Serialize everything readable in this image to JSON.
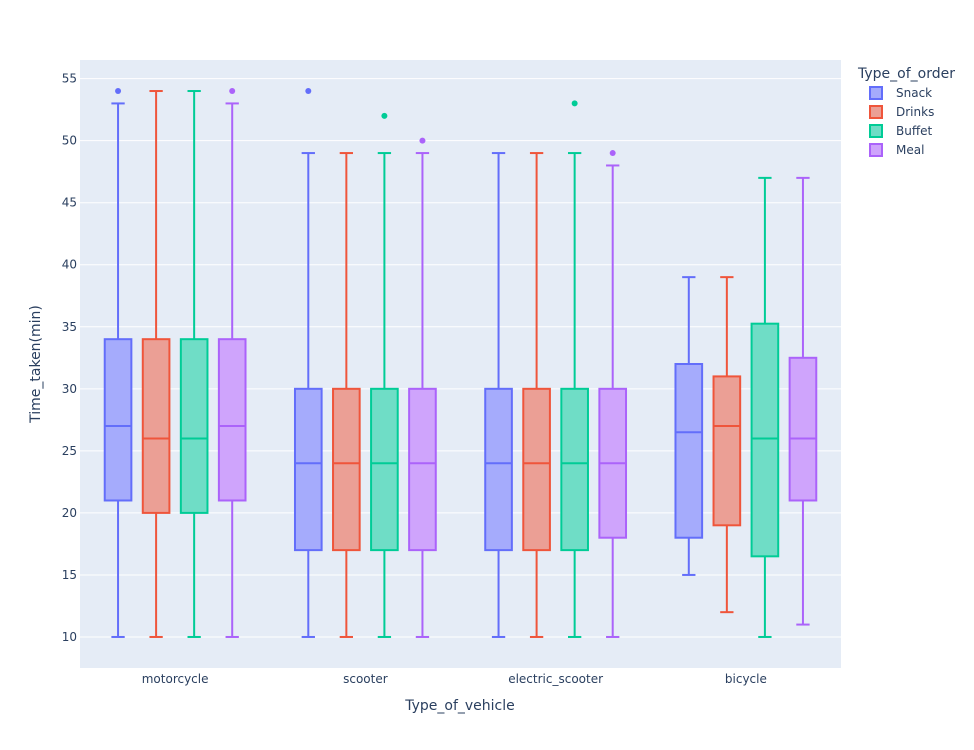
{
  "chart_data": {
    "type": "box",
    "title": "",
    "xlabel": "Type_of_vehicle",
    "ylabel": "Time_taken(min)",
    "ylim": [
      7.5,
      56.5
    ],
    "yticks": [
      10,
      15,
      20,
      25,
      30,
      35,
      40,
      45,
      50,
      55
    ],
    "grid": true,
    "legend_title": "Type_of_order",
    "legend_position": "top-right",
    "categories": [
      "motorcycle",
      "scooter",
      "electric_scooter",
      "bicycle"
    ],
    "series": [
      {
        "name": "Snack",
        "color": "#636efa",
        "fill": "#a5abfc",
        "boxes": [
          {
            "min": 10,
            "q1": 21,
            "median": 27,
            "q3": 34,
            "max": 53,
            "outliers": [
              54
            ]
          },
          {
            "min": 10,
            "q1": 17,
            "median": 24,
            "q3": 30,
            "max": 49,
            "outliers": [
              54
            ]
          },
          {
            "min": 10,
            "q1": 17,
            "median": 24,
            "q3": 30,
            "max": 49,
            "outliers": []
          },
          {
            "min": 15,
            "q1": 18,
            "median": 26.5,
            "q3": 32,
            "max": 39,
            "outliers": []
          }
        ]
      },
      {
        "name": "Drinks",
        "color": "#ef553b",
        "fill": "#eb9f95",
        "boxes": [
          {
            "min": 10,
            "q1": 20,
            "median": 26,
            "q3": 34,
            "max": 54,
            "outliers": []
          },
          {
            "min": 10,
            "q1": 17,
            "median": 24,
            "q3": 30,
            "max": 49,
            "outliers": []
          },
          {
            "min": 10,
            "q1": 17,
            "median": 24,
            "q3": 30,
            "max": 49,
            "outliers": []
          },
          {
            "min": 12,
            "q1": 19,
            "median": 27,
            "q3": 31,
            "max": 39,
            "outliers": []
          }
        ]
      },
      {
        "name": "Buffet",
        "color": "#00cc96",
        "fill": "#6fddc6",
        "boxes": [
          {
            "min": 10,
            "q1": 20,
            "median": 26,
            "q3": 34,
            "max": 54,
            "outliers": []
          },
          {
            "min": 10,
            "q1": 17,
            "median": 24,
            "q3": 30,
            "max": 49,
            "outliers": [
              52
            ]
          },
          {
            "min": 10,
            "q1": 17,
            "median": 24,
            "q3": 30,
            "max": 49,
            "outliers": [
              53
            ]
          },
          {
            "min": 10,
            "q1": 16.5,
            "median": 26,
            "q3": 35.25,
            "max": 47,
            "outliers": []
          }
        ]
      },
      {
        "name": "Meal",
        "color": "#ab63fa",
        "fill": "#cfa4fc",
        "boxes": [
          {
            "min": 10,
            "q1": 21,
            "median": 27,
            "q3": 34,
            "max": 53,
            "outliers": [
              54
            ]
          },
          {
            "min": 10,
            "q1": 17,
            "median": 24,
            "q3": 30,
            "max": 49,
            "outliers": [
              50
            ]
          },
          {
            "min": 10,
            "q1": 18,
            "median": 24,
            "q3": 30,
            "max": 48,
            "outliers": [
              49
            ]
          },
          {
            "min": 11,
            "q1": 21,
            "median": 26,
            "q3": 32.5,
            "max": 47,
            "outliers": []
          }
        ]
      }
    ]
  }
}
